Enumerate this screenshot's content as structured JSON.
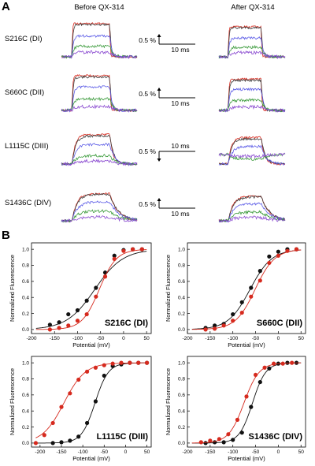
{
  "panel_a": {
    "letter": "A",
    "columns": [
      "Before QX-314",
      "After QX-314"
    ],
    "trace_colors": [
      "#d62a1e",
      "#3a3a3a",
      "#5a5ae6",
      "#3a9a3a",
      "#8a4ad0",
      "#e070c0"
    ],
    "rows": [
      {
        "label": "S216C (DI)",
        "scale_y": "0.5 %",
        "scale_x": "10 ms"
      },
      {
        "label": "S660C (DII)",
        "scale_y": "0.5 %",
        "scale_x": "10 ms"
      },
      {
        "label": "L1115C (DIII)",
        "scale_y": "0.5 %",
        "scale_x": "10 ms"
      },
      {
        "label": "S1436C (DIV)",
        "scale_y": "0.5 %",
        "scale_x": "10 ms"
      }
    ]
  },
  "panel_b": {
    "letter": "B"
  },
  "chart_data": [
    {
      "type": "scatter",
      "label": "S216C (DI)",
      "xlabel": "Potential (mV)",
      "ylabel": "Normalized Fluorescence",
      "xlim": [
        -200,
        60
      ],
      "ylim": [
        -0.05,
        1.08
      ],
      "xticks": [
        -200,
        -150,
        -100,
        -50,
        0,
        50
      ],
      "yticks": [
        0.0,
        0.2,
        0.4,
        0.6,
        0.8,
        1.0
      ],
      "series": [
        {
          "color": "#111111",
          "x": [
            -160,
            -140,
            -120,
            -100,
            -80,
            -60,
            -40,
            -20,
            0,
            20,
            40
          ],
          "y": [
            0.06,
            0.09,
            0.19,
            0.24,
            0.36,
            0.52,
            0.71,
            0.92,
            0.99,
            1.0,
            1.0
          ]
        },
        {
          "color": "#d62a1e",
          "x": [
            -160,
            -140,
            -120,
            -100,
            -80,
            -60,
            -40,
            -20,
            0,
            20,
            40
          ],
          "y": [
            0.0,
            0.02,
            0.05,
            0.11,
            0.19,
            0.41,
            0.66,
            0.88,
            0.98,
            1.0,
            1.0
          ]
        }
      ]
    },
    {
      "type": "scatter",
      "label": "S660C (DII)",
      "xlabel": "Potential (mV)",
      "ylabel": "Normalized Fluorescence",
      "xlim": [
        -200,
        60
      ],
      "ylim": [
        -0.05,
        1.08
      ],
      "xticks": [
        -200,
        -150,
        -100,
        -50,
        0,
        50
      ],
      "yticks": [
        0.0,
        0.2,
        0.4,
        0.6,
        0.8,
        1.0
      ],
      "series": [
        {
          "color": "#111111",
          "x": [
            -160,
            -140,
            -120,
            -100,
            -80,
            -60,
            -40,
            -20,
            0,
            20,
            40
          ],
          "y": [
            0.02,
            0.05,
            0.07,
            0.19,
            0.34,
            0.52,
            0.73,
            0.91,
            0.97,
            1.0,
            1.0
          ]
        },
        {
          "color": "#d62a1e",
          "x": [
            -160,
            -140,
            -120,
            -100,
            -80,
            -60,
            -40,
            -20,
            0,
            20,
            40
          ],
          "y": [
            0.0,
            0.01,
            0.05,
            0.11,
            0.21,
            0.41,
            0.61,
            0.83,
            0.92,
            0.98,
            1.0
          ]
        }
      ]
    },
    {
      "type": "scatter",
      "label": "L1115C (DIII)",
      "xlabel": "Potential (mV)",
      "ylabel": "Normalized Fluorescence",
      "xlim": [
        -220,
        60
      ],
      "ylim": [
        -0.05,
        1.08
      ],
      "xticks": [
        -200,
        -150,
        -100,
        -50,
        0,
        50
      ],
      "yticks": [
        0.0,
        0.2,
        0.4,
        0.6,
        0.8,
        1.0
      ],
      "series": [
        {
          "color": "#111111",
          "x": [
            -170,
            -150,
            -130,
            -110,
            -90,
            -70,
            -50,
            -30,
            -10,
            10,
            30,
            50
          ],
          "y": [
            0.0,
            0.01,
            0.03,
            0.08,
            0.25,
            0.52,
            0.84,
            0.96,
            0.98,
            1.0,
            1.0,
            1.0
          ]
        },
        {
          "color": "#d62a1e",
          "x": [
            -210,
            -190,
            -170,
            -150,
            -130,
            -110,
            -90,
            -70,
            -50,
            -30,
            -10,
            10,
            30,
            50
          ],
          "y": [
            0.0,
            0.1,
            0.25,
            0.45,
            0.62,
            0.79,
            0.89,
            0.94,
            0.97,
            0.99,
            1.0,
            1.0,
            1.0,
            1.0
          ]
        }
      ]
    },
    {
      "type": "scatter",
      "label": "S1436C (DIV)",
      "xlabel": "Potential (mV)",
      "ylabel": "Normalized Fluorescence",
      "xlim": [
        -200,
        60
      ],
      "ylim": [
        -0.05,
        1.08
      ],
      "xticks": [
        -200,
        -150,
        -100,
        -50,
        0,
        50
      ],
      "yticks": [
        0.0,
        0.2,
        0.4,
        0.6,
        0.8,
        1.0
      ],
      "series": [
        {
          "color": "#111111",
          "x": [
            -160,
            -140,
            -120,
            -100,
            -80,
            -60,
            -40,
            -20,
            0,
            20,
            40
          ],
          "y": [
            0.0,
            0.01,
            0.01,
            0.04,
            0.13,
            0.45,
            0.76,
            0.93,
            0.99,
            1.0,
            1.0
          ]
        },
        {
          "color": "#d62a1e",
          "x": [
            -170,
            -150,
            -130,
            -110,
            -90,
            -70,
            -50,
            -30,
            -10,
            10,
            30
          ],
          "y": [
            0.01,
            0.03,
            0.05,
            0.11,
            0.29,
            0.58,
            0.85,
            0.94,
            0.99,
            0.99,
            1.0
          ]
        }
      ]
    }
  ]
}
